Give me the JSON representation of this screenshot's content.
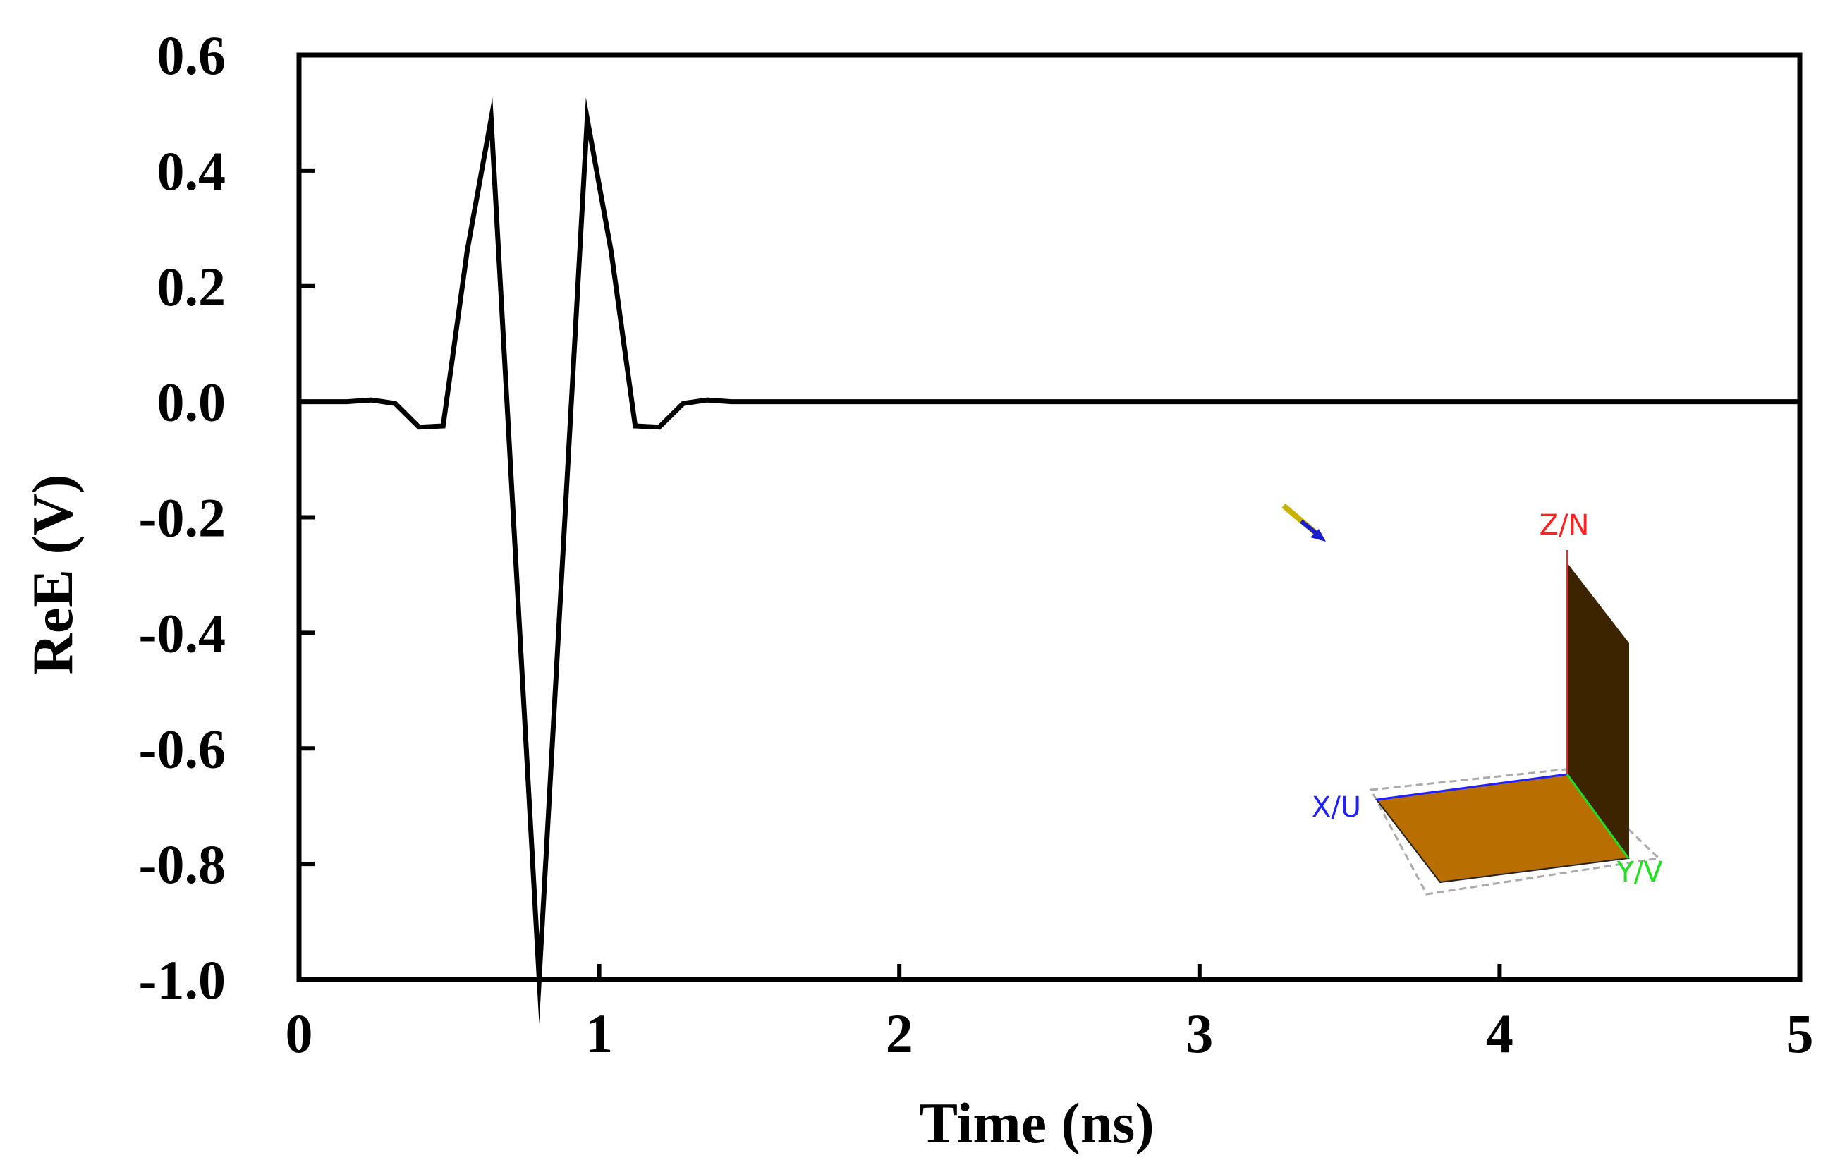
{
  "chart_data": {
    "type": "line",
    "title": "",
    "xlabel": "Time (ns)",
    "ylabel": "ReE (V)",
    "xlim": [
      0,
      5
    ],
    "ylim": [
      -1.0,
      0.6
    ],
    "xticks": [
      0,
      1,
      2,
      3,
      4,
      5
    ],
    "xtick_labels": [
      "0",
      "1",
      "2",
      "3",
      "4",
      "5"
    ],
    "yticks": [
      0.6,
      0.4,
      0.2,
      0.0,
      -0.2,
      -0.4,
      -0.6,
      -0.8,
      -1.0
    ],
    "ytick_labels": [
      "0.6",
      "0.4",
      "0.2",
      "0.0",
      "-0.2",
      "-0.4",
      "-0.6",
      "-0.8",
      "-1.0"
    ],
    "grid": false,
    "legend": "none",
    "series": [
      {
        "color": "#000000",
        "x": [
          0,
          0.16,
          0.24,
          0.32,
          0.4,
          0.48,
          0.56,
          0.64,
          0.8,
          0.96,
          1.04,
          1.12,
          1.2,
          1.28,
          1.36,
          1.44,
          5.0
        ],
        "y": [
          0.0,
          0.0,
          0.003,
          -0.003,
          -0.044,
          -0.042,
          0.26,
          0.49,
          -1.0,
          0.49,
          0.26,
          -0.042,
          -0.044,
          -0.003,
          0.003,
          0.0,
          0.0
        ]
      }
    ]
  },
  "inset": {
    "labels": {
      "z": "Z/N",
      "x": "X/U",
      "y": "Y/V"
    },
    "colors": {
      "z": "#ff2020",
      "x": "#2020ff",
      "y": "#20e020",
      "plate": "#b86e00",
      "wall": "#3d2400"
    }
  }
}
